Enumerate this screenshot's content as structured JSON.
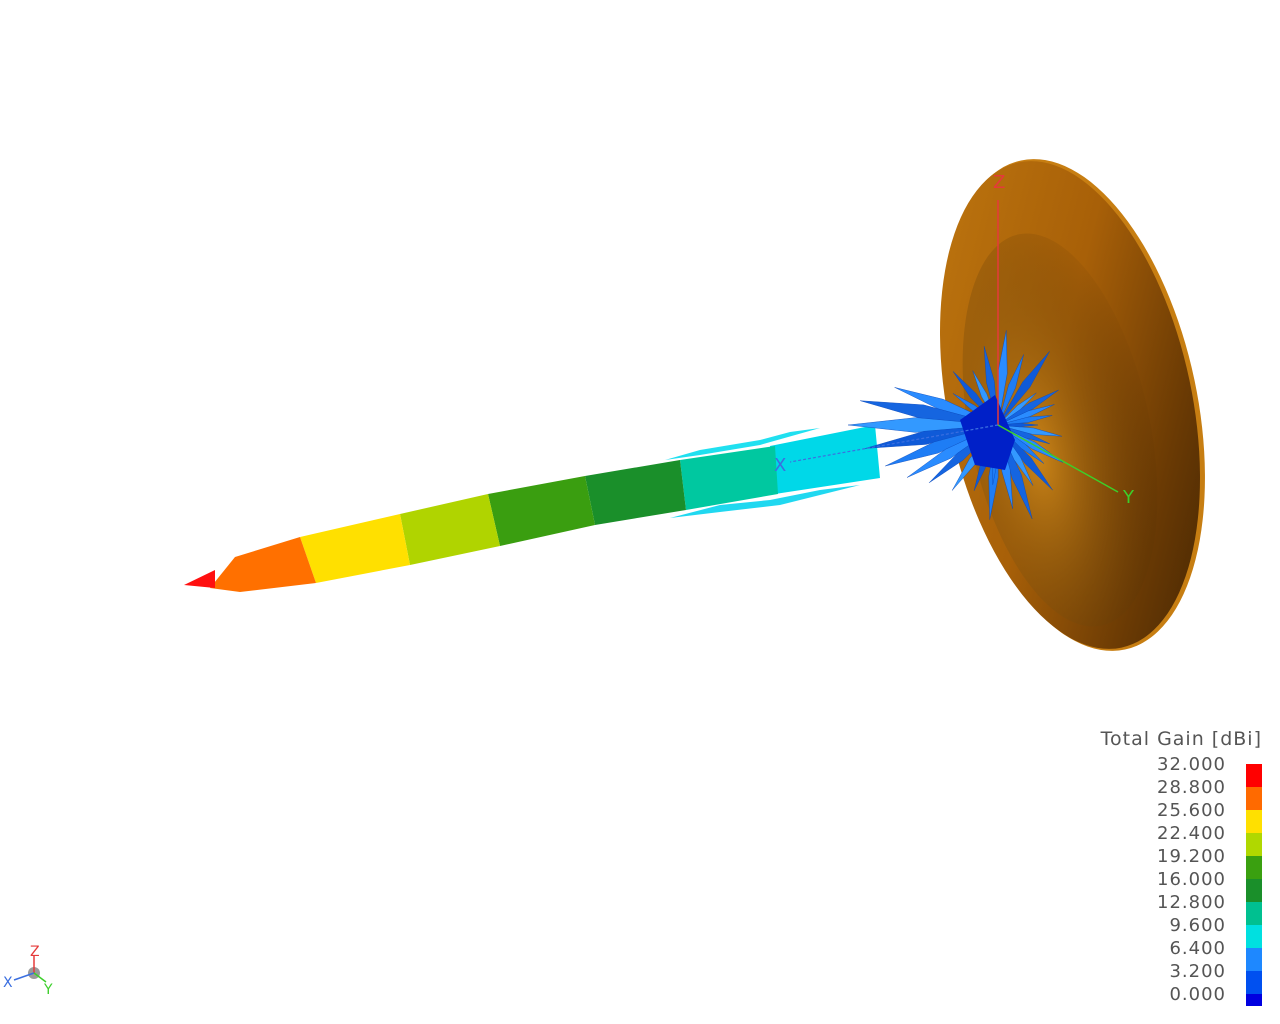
{
  "viewport": {
    "axes": {
      "x": {
        "label": "X",
        "color": "#3b6fe0"
      },
      "y": {
        "label": "Y",
        "color": "#3ccf2a"
      },
      "z": {
        "label": "Z",
        "color": "#e53a3a"
      }
    },
    "dish_color": "#b86c0c"
  },
  "legend": {
    "title": "Total Gain [dBi]",
    "entries": [
      {
        "label": "32.000",
        "color": "#ff0000"
      },
      {
        "label": "28.800",
        "color": "#ff6a00"
      },
      {
        "label": "25.600",
        "color": "#ffe000"
      },
      {
        "label": "22.400",
        "color": "#b0d800"
      },
      {
        "label": "19.200",
        "color": "#3aa010"
      },
      {
        "label": "16.000",
        "color": "#1a8f2a"
      },
      {
        "label": "12.800",
        "color": "#00c090"
      },
      {
        "label": "9.600",
        "color": "#00e0e0"
      },
      {
        "label": "6.400",
        "color": "#1e88ff"
      },
      {
        "label": "3.200",
        "color": "#0050f0"
      },
      {
        "label": "0.000",
        "color": "#0000e0"
      }
    ]
  },
  "mini_triad": {
    "x": "X",
    "y": "Y",
    "z": "Z"
  }
}
